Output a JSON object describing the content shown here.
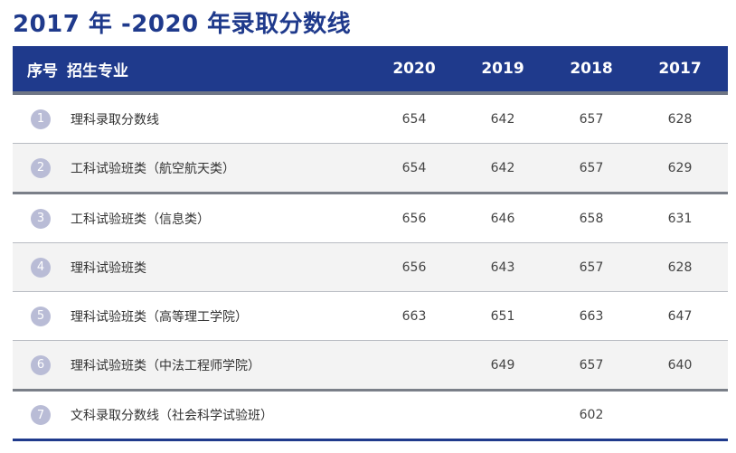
{
  "title": "2017 年 -2020 年录取分数线",
  "header": {
    "col_index": "序号",
    "col_major": "招生专业",
    "years": [
      "2020",
      "2019",
      "2018",
      "2017"
    ]
  },
  "rows": [
    {
      "index": "1",
      "name": "理科录取分数线",
      "scores": [
        "654",
        "642",
        "657",
        "628"
      ]
    },
    {
      "index": "2",
      "name": "工科试验班类（航空航天类）",
      "scores": [
        "654",
        "642",
        "657",
        "629"
      ]
    },
    {
      "index": "3",
      "name": "工科试验班类（信息类）",
      "scores": [
        "656",
        "646",
        "658",
        "631"
      ]
    },
    {
      "index": "4",
      "name": "理科试验班类",
      "scores": [
        "656",
        "643",
        "657",
        "628"
      ]
    },
    {
      "index": "5",
      "name": "理科试验班类（高等理工学院）",
      "scores": [
        "663",
        "651",
        "663",
        "647"
      ]
    },
    {
      "index": "6",
      "name": "理科试验班类（中法工程师学院）",
      "scores": [
        "",
        "649",
        "657",
        "640"
      ]
    },
    {
      "index": "7",
      "name": "文科录取分数线（社会科学试验班）",
      "scores": [
        "",
        "",
        "602",
        ""
      ]
    }
  ],
  "colors": {
    "header_bg": "#1f3a8c",
    "title": "#1f3a8c",
    "badge": "#b9bcd6",
    "alt_row": "#f3f3f3"
  }
}
